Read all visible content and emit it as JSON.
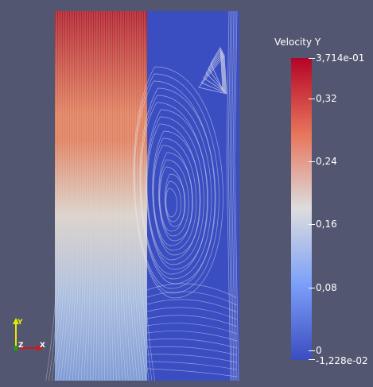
{
  "render_view": {
    "background_color": "#525670",
    "left_region_colors": {
      "top": "#b2202b",
      "upper_mid": "#e2805d",
      "middle": "#dcd2c9",
      "lower": "#a9bde0",
      "bottom": "#7f9bd6"
    },
    "right_region_color": "#3a4ec2",
    "streamline_color": "#e6e8f0"
  },
  "legend": {
    "title": "Velocity Y",
    "max_label": "3,714e-01",
    "min_label": "-1,228e-02",
    "range": [
      -0.01228,
      0.3714
    ],
    "ticks": [
      {
        "label": "0,32",
        "value": 0.32
      },
      {
        "label": "0,24",
        "value": 0.24
      },
      {
        "label": "0,16",
        "value": 0.16
      },
      {
        "label": "0,08",
        "value": 0.08
      },
      {
        "label": "0",
        "value": 0
      }
    ],
    "colors": {
      "top": "#b40426",
      "high": "#e7745b",
      "mid": "#dddddd",
      "low": "#7b9ff9",
      "bottom": "#3b4cc0"
    }
  },
  "orientation_axes": {
    "y_label": "Y",
    "z_label": "Z",
    "x_label": "X",
    "y_color": "#e8e800",
    "z_color": "#1aa11a",
    "x_color": "#d01818"
  }
}
